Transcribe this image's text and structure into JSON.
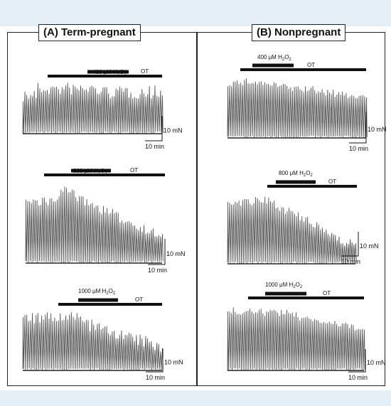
{
  "panels": [
    {
      "title": "(A) Term-pregnant",
      "experiments": [
        {
          "concentration_prefix": "400 μM H",
          "sub_2": "2",
          "middle": "O",
          "sub_2b": "2",
          "agonist": "OT",
          "scale_force": "10 mN",
          "scale_time": "10 min"
        },
        {
          "concentration_prefix": "800 μM H",
          "sub_2": "2",
          "middle": "O",
          "sub_2b": "2",
          "agonist": "OT",
          "scale_force": "10 mN",
          "scale_time": "10 min"
        },
        {
          "concentration_prefix": "1000 μM H",
          "sub_2": "2",
          "middle": "O",
          "sub_2b": "2",
          "agonist": "OT",
          "scale_force": "10 mN",
          "scale_time": "10 min"
        }
      ]
    },
    {
      "title": "(B) Nonpregnant",
      "experiments": [
        {
          "concentration_prefix": "400 μM H",
          "sub_2": "2",
          "middle": "O",
          "sub_2b": "2",
          "agonist": "OT",
          "scale_force": "10 mN",
          "scale_time": "10 min"
        },
        {
          "concentration_prefix": "800 μM H",
          "sub_2": "2",
          "middle": "O",
          "sub_2b": "2",
          "agonist": "OT",
          "scale_force": "10 mN",
          "scale_time": "10 min"
        },
        {
          "concentration_prefix": "1000 μM H",
          "sub_2": "2",
          "middle": "O",
          "sub_2b": "2",
          "agonist": "OT",
          "scale_force": "10 mN",
          "scale_time": "10 min"
        }
      ]
    }
  ],
  "colors": {
    "trace": "#555555",
    "bar": "#111111",
    "band": "#e6eff5"
  }
}
